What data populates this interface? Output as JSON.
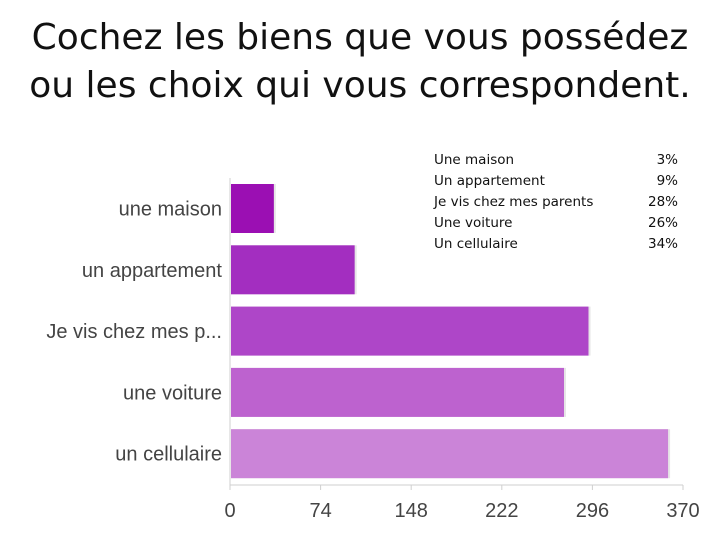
{
  "slide": {
    "title_line1": "Cochez les biens que vous possédez",
    "title_line2": "ou les choix qui vous correspondent."
  },
  "legend": [
    {
      "label": "Une maison",
      "pct": "3%"
    },
    {
      "label": "Un appartement",
      "pct": "9%"
    },
    {
      "label": "Je vis chez mes parents",
      "pct": "28%"
    },
    {
      "label": "Une voiture",
      "pct": "26%"
    },
    {
      "label": "Un cellulaire",
      "pct": "34%"
    }
  ],
  "chart_data": {
    "type": "bar",
    "orientation": "horizontal",
    "categories": [
      "une maison",
      "un appartement",
      "Je vis chez mes p...",
      "une voiture",
      "un cellulaire"
    ],
    "values": [
      35,
      101,
      292,
      272,
      357
    ],
    "xlim": [
      0,
      370
    ],
    "xticks": [
      "0",
      "74",
      "148",
      "222",
      "296",
      "370"
    ],
    "colors": [
      "#9b0fb3",
      "#a32ec0",
      "#ae46c8",
      "#bd62cf",
      "#cb84d8"
    ],
    "grid": false
  }
}
